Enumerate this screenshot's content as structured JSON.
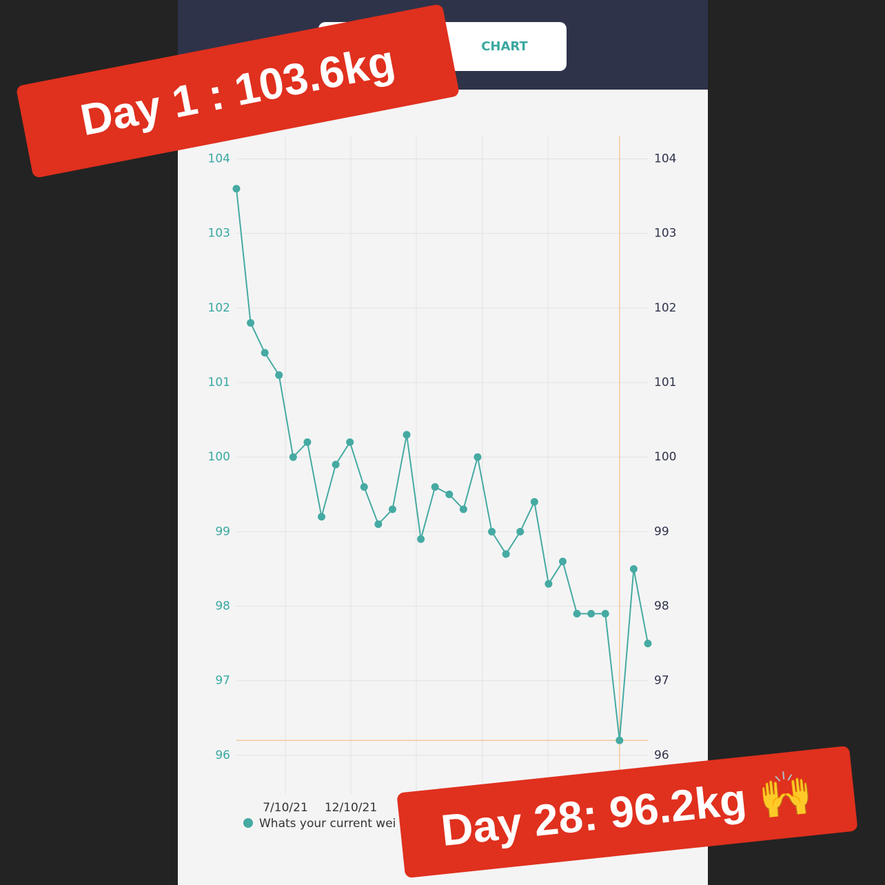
{
  "tabs": [
    "CHART"
  ],
  "chart_data": {
    "type": "line",
    "series": [
      {
        "name": "Whats your current wei",
        "color": "#45aaa2",
        "values": [
          103.6,
          101.8,
          101.4,
          101.1,
          100.0,
          100.2,
          99.2,
          99.9,
          100.2,
          99.6,
          99.1,
          99.3,
          100.3,
          98.9,
          99.6,
          99.5,
          99.3,
          100.0,
          99.0,
          98.7,
          99.0,
          99.4,
          98.3,
          98.6,
          97.9,
          97.9,
          97.9,
          96.2,
          98.5,
          97.5
        ]
      }
    ],
    "x_labels": [
      "7/10/21",
      "12/10/21"
    ],
    "ylim": [
      95.5,
      104.3
    ],
    "yticks": [
      96,
      97,
      98,
      99,
      100,
      101,
      102,
      103,
      104
    ],
    "y2lim": [
      95.5,
      104.3
    ],
    "y2ticks": [
      96,
      97,
      98,
      99,
      100,
      101,
      102,
      103,
      104
    ],
    "grid": true,
    "highlight_color": "#f5c99a"
  },
  "stickers": [
    "Day 1 : 103.6kg",
    "Day 28: 96.2kg 🙌"
  ]
}
